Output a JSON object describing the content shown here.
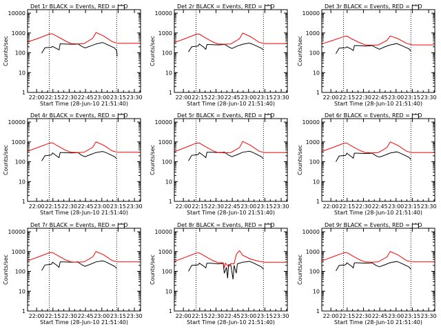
{
  "colors": {
    "events": "#000000",
    "lld": "#ff0000"
  },
  "shared": {
    "xlabel": "Start Time (28-Jun-10 21:51:40)",
    "ylabel": "Counts/sec",
    "x_tick_labels": [
      "22:00",
      "22:15",
      "22:30",
      "22:45",
      "23:00",
      "23:15",
      "23:30"
    ],
    "x_tick_minutes": [
      8.33,
      23.33,
      38.33,
      53.33,
      68.33,
      83.33,
      98.33
    ],
    "xlim_minutes": [
      0,
      104
    ],
    "y_tick_labels": [
      "1",
      "10",
      "100",
      "1000",
      "10000"
    ],
    "y_tick_values": [
      1,
      10,
      100,
      1000,
      10000
    ],
    "ylim": [
      1,
      15000
    ],
    "y_scale": "log",
    "vertical_markers_minutes": [
      20,
      82
    ]
  },
  "chart_data": [
    {
      "type": "line",
      "title": "Det 1r BLACK = Events, RED = LLD",
      "series": [
        {
          "name": "Events",
          "x": [
            13,
            16,
            22,
            23,
            27,
            29,
            30,
            33,
            40,
            45,
            46,
            50,
            53,
            58,
            63,
            69,
            72,
            80,
            82,
            82.5
          ],
          "y": [
            95,
            180,
            190,
            210,
            160,
            140,
            285,
            280,
            270,
            270,
            285,
            210,
            175,
            220,
            280,
            330,
            280,
            175,
            130,
            65
          ]
        },
        {
          "name": "LLD",
          "x": [
            0,
            10,
            20,
            23,
            27,
            35,
            40,
            46,
            52,
            60,
            63,
            70,
            78,
            83,
            104
          ],
          "y": [
            350,
            540,
            880,
            900,
            680,
            390,
            290,
            280,
            290,
            540,
            1050,
            700,
            360,
            300,
            300
          ]
        }
      ]
    },
    {
      "type": "line",
      "title": "Det 2r BLACK = Events, RED = LLD",
      "series": [
        {
          "name": "Events",
          "x": [
            13,
            16,
            22,
            23,
            27,
            29,
            30,
            33,
            40,
            45,
            46,
            50,
            53,
            58,
            63,
            69,
            72,
            80,
            82
          ],
          "y": [
            110,
            200,
            220,
            280,
            190,
            150,
            260,
            260,
            250,
            260,
            270,
            200,
            165,
            220,
            270,
            310,
            270,
            170,
            140
          ]
        },
        {
          "name": "LLD",
          "x": [
            0,
            10,
            20,
            23,
            27,
            35,
            40,
            46,
            52,
            60,
            63,
            70,
            78,
            83,
            104
          ],
          "y": [
            330,
            520,
            850,
            880,
            640,
            360,
            280,
            270,
            280,
            520,
            980,
            660,
            340,
            290,
            290
          ]
        }
      ]
    },
    {
      "type": "line",
      "title": "Det 3r BLACK = Events, RED = LLD",
      "series": [
        {
          "name": "Events",
          "x": [
            13,
            16,
            22,
            23,
            27,
            29,
            30,
            33,
            40,
            45,
            46,
            50,
            53,
            58,
            63,
            69,
            72,
            80,
            82
          ],
          "y": [
            90,
            170,
            180,
            200,
            155,
            130,
            230,
            230,
            220,
            225,
            235,
            180,
            150,
            200,
            250,
            290,
            250,
            160,
            120
          ]
        },
        {
          "name": "LLD",
          "x": [
            0,
            10,
            20,
            23,
            27,
            35,
            40,
            46,
            52,
            60,
            63,
            70,
            78,
            83,
            104
          ],
          "y": [
            280,
            420,
            650,
            700,
            520,
            320,
            250,
            240,
            250,
            420,
            700,
            520,
            300,
            250,
            250
          ]
        }
      ]
    },
    {
      "type": "line",
      "title": "Det 4r BLACK = Events, RED = LLD",
      "series": [
        {
          "name": "Events",
          "x": [
            13,
            16,
            22,
            23,
            27,
            29,
            30,
            33,
            40,
            45,
            46,
            50,
            53,
            58,
            63,
            69,
            72,
            80,
            82
          ],
          "y": [
            110,
            200,
            220,
            280,
            190,
            160,
            290,
            290,
            280,
            285,
            295,
            210,
            180,
            230,
            290,
            330,
            290,
            180,
            140
          ]
        },
        {
          "name": "LLD",
          "x": [
            0,
            10,
            20,
            23,
            27,
            35,
            40,
            46,
            52,
            60,
            63,
            70,
            78,
            83,
            104
          ],
          "y": [
            340,
            540,
            860,
            900,
            660,
            380,
            300,
            290,
            300,
            540,
            1000,
            680,
            350,
            300,
            300
          ]
        }
      ]
    },
    {
      "type": "line",
      "title": "Det 5r BLACK = Events, RED = LLD",
      "series": [
        {
          "name": "Events",
          "x": [
            13,
            16,
            22,
            23,
            27,
            29,
            30,
            33,
            40,
            45,
            46,
            50,
            53,
            58,
            63,
            69,
            72,
            80,
            82
          ],
          "y": [
            110,
            210,
            230,
            290,
            200,
            160,
            300,
            300,
            290,
            295,
            305,
            215,
            180,
            230,
            300,
            340,
            300,
            180,
            140
          ]
        },
        {
          "name": "LLD",
          "x": [
            0,
            10,
            20,
            23,
            27,
            35,
            40,
            46,
            52,
            60,
            63,
            70,
            78,
            83,
            104
          ],
          "y": [
            320,
            520,
            860,
            880,
            650,
            370,
            290,
            280,
            290,
            520,
            1050,
            680,
            340,
            290,
            290
          ]
        }
      ]
    },
    {
      "type": "line",
      "title": "Det 6r BLACK = Events, RED = LLD",
      "series": [
        {
          "name": "Events",
          "x": [
            13,
            16,
            22,
            23,
            27,
            29,
            30,
            33,
            40,
            45,
            46,
            50,
            53,
            58,
            63,
            69,
            72,
            80,
            82
          ],
          "y": [
            100,
            195,
            210,
            270,
            185,
            150,
            270,
            270,
            260,
            265,
            275,
            200,
            170,
            215,
            275,
            315,
            275,
            170,
            130
          ]
        },
        {
          "name": "LLD",
          "x": [
            0,
            10,
            20,
            23,
            27,
            35,
            40,
            46,
            52,
            60,
            63,
            70,
            78,
            83,
            104
          ],
          "y": [
            330,
            520,
            840,
            870,
            640,
            370,
            290,
            280,
            290,
            520,
            1000,
            670,
            340,
            290,
            290
          ]
        }
      ]
    },
    {
      "type": "line",
      "title": "Det 7r BLACK = Events, RED = LLD",
      "series": [
        {
          "name": "Events",
          "x": [
            13,
            16,
            22,
            23,
            27,
            29,
            30,
            33,
            40,
            45,
            46,
            50,
            53,
            58,
            63,
            69,
            72,
            80,
            82
          ],
          "y": [
            110,
            210,
            230,
            290,
            200,
            160,
            300,
            300,
            290,
            295,
            305,
            215,
            180,
            230,
            300,
            340,
            300,
            180,
            140
          ]
        },
        {
          "name": "LLD",
          "x": [
            0,
            10,
            20,
            23,
            27,
            35,
            40,
            46,
            52,
            60,
            63,
            70,
            78,
            83,
            104
          ],
          "y": [
            340,
            540,
            870,
            900,
            660,
            380,
            300,
            290,
            300,
            540,
            1000,
            680,
            350,
            300,
            300
          ]
        }
      ]
    },
    {
      "type": "line",
      "title": "Det 8r BLACK = Events, RED = LLD",
      "series": [
        {
          "name": "Events",
          "x": [
            13,
            16,
            22,
            23,
            27,
            29,
            30,
            33,
            40,
            45,
            46,
            48,
            49,
            50,
            52,
            54,
            55,
            57,
            58,
            60,
            63,
            69,
            72,
            80,
            82
          ],
          "y": [
            100,
            200,
            215,
            260,
            185,
            150,
            260,
            260,
            240,
            250,
            80,
            160,
            45,
            220,
            210,
            40,
            200,
            80,
            240,
            260,
            290,
            320,
            280,
            170,
            130
          ]
        },
        {
          "name": "LLD",
          "x": [
            0,
            10,
            20,
            23,
            27,
            35,
            40,
            45,
            46,
            47,
            50,
            52,
            55,
            57,
            58,
            60,
            63,
            70,
            78,
            83,
            104
          ],
          "y": [
            320,
            510,
            830,
            860,
            640,
            360,
            280,
            270,
            150,
            260,
            170,
            250,
            240,
            700,
            850,
            1100,
            650,
            420,
            320,
            290,
            290
          ]
        }
      ]
    },
    {
      "type": "line",
      "title": "Det 9r BLACK = Events, RED = LLD",
      "series": [
        {
          "name": "Events",
          "x": [
            13,
            16,
            22,
            23,
            27,
            29,
            30,
            33,
            40,
            45,
            46,
            50,
            53,
            58,
            63,
            69,
            72,
            80,
            82
          ],
          "y": [
            105,
            200,
            215,
            270,
            190,
            150,
            270,
            270,
            260,
            265,
            275,
            200,
            170,
            215,
            275,
            315,
            275,
            170,
            130
          ]
        },
        {
          "name": "LLD",
          "x": [
            0,
            10,
            20,
            23,
            27,
            35,
            40,
            46,
            52,
            60,
            63,
            70,
            78,
            83,
            104
          ],
          "y": [
            340,
            540,
            860,
            900,
            660,
            380,
            300,
            290,
            300,
            540,
            1000,
            680,
            350,
            300,
            300
          ]
        }
      ]
    }
  ]
}
